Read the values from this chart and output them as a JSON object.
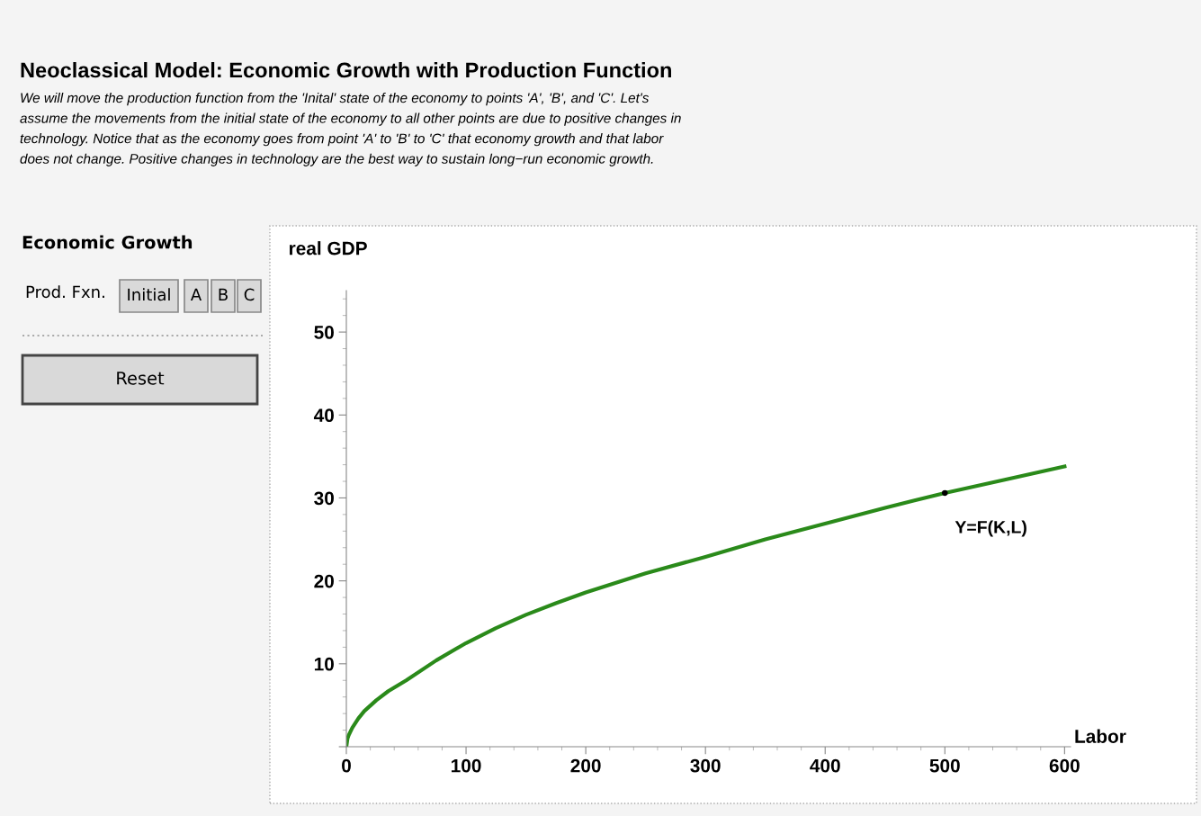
{
  "chart_data": {
    "type": "line",
    "title": "Neoclassical Model: Economic Growth with Production Function",
    "subtitle": "We will move the production function from the 'Inital' state of the economy to points 'A', 'B', and 'C'. Let's\nassume the movements from the initial state of the economy to all other points are due to positive changes in\ntechnology. Notice that as the economy goes from point 'A' to 'B' to 'C' that economy growth and that labor\ndoes not change. Positive changes in technology are the best way to sustain long−run economic growth.",
    "xlabel": "Labor",
    "ylabel": "real GDP",
    "series": [
      {
        "color": "#2a8a1a",
        "x": [
          0,
          1,
          2,
          5,
          10,
          15,
          25,
          35,
          50,
          75,
          100,
          125,
          150,
          175,
          200,
          250,
          300,
          350,
          400,
          450,
          500,
          550,
          600
        ],
        "values": [
          0,
          1.0,
          1.4,
          2.3,
          3.4,
          4.3,
          5.6,
          6.7,
          8.0,
          10.4,
          12.5,
          14.3,
          15.9,
          17.3,
          18.6,
          20.9,
          22.9,
          25.0,
          26.9,
          28.8,
          30.6,
          32.2,
          33.8
        ]
      },
      {
        "type": "scatter",
        "color": "#000000",
        "x": [
          500
        ],
        "values": [
          30.6
        ]
      }
    ],
    "xlim": [
      0,
      605
    ],
    "ylim": [
      0,
      55
    ],
    "xticks": [
      0,
      100,
      200,
      300,
      400,
      500,
      600
    ],
    "yticks": [
      {
        "value": 0,
        "label": null
      },
      10,
      20,
      30,
      40,
      50
    ],
    "grid": false,
    "marker": "none",
    "line_style": "solid",
    "annotations": [
      "Economic Growth",
      "Prod. Fxn.",
      "Initial",
      "A",
      "B",
      "C",
      "Reset",
      {
        "text": "Y=F(K,L)",
        "x": 500,
        "y": 30.6
      }
    ]
  }
}
